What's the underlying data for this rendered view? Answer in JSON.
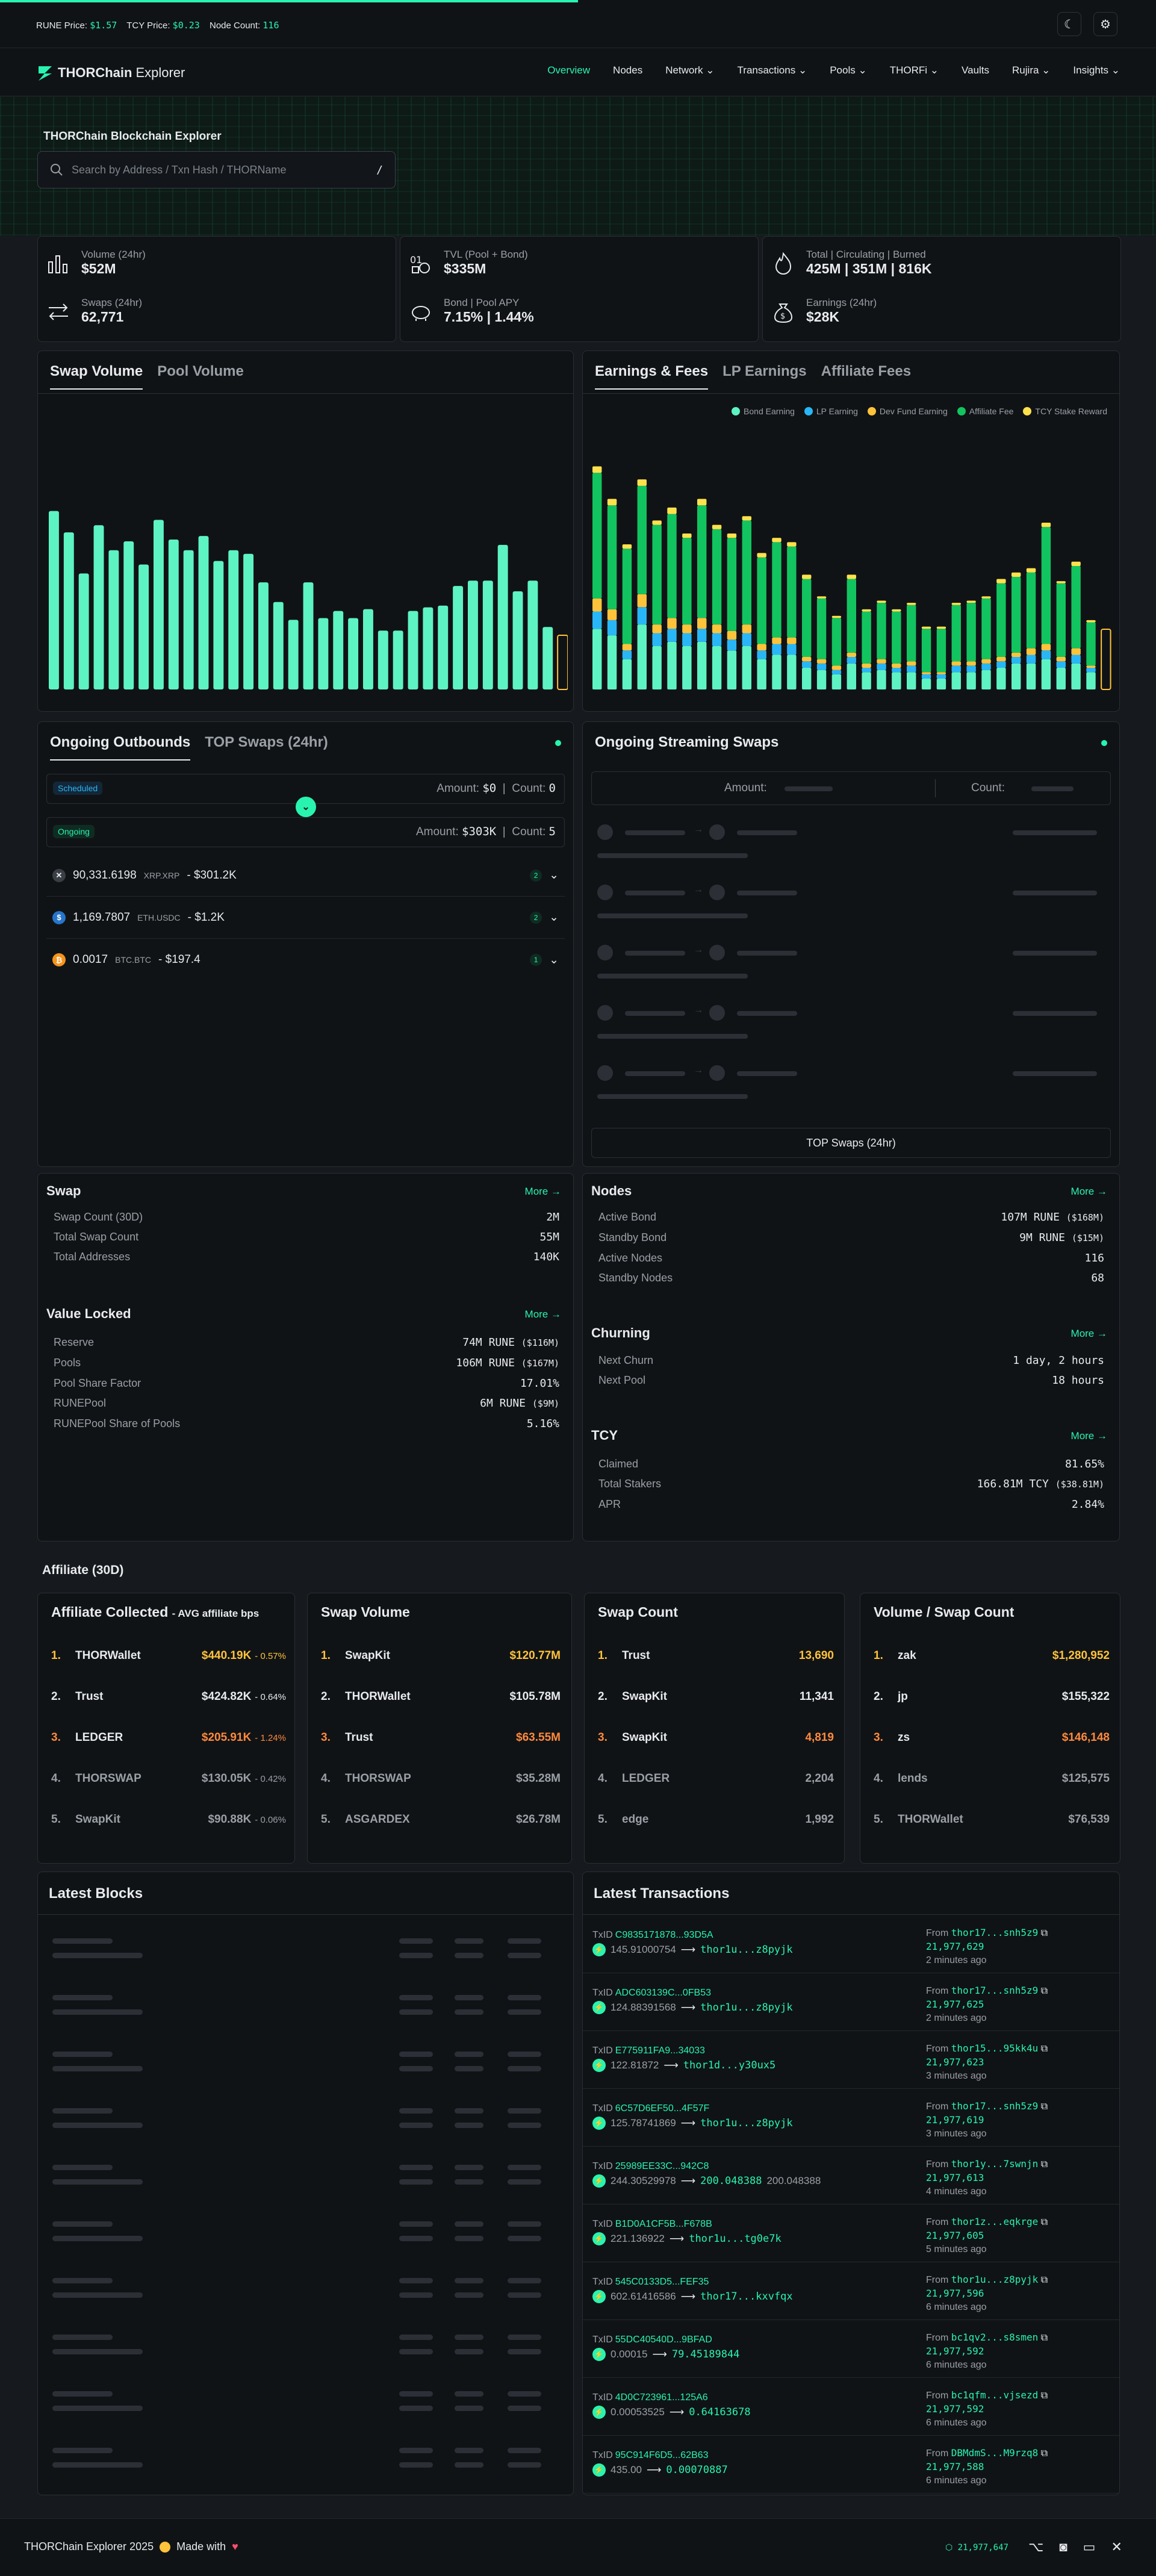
{
  "topbar": {
    "rune_label": "RUNE Price:",
    "rune_value": "$1.57",
    "tcy_label": "TCY Price:",
    "tcy_value": "$0.23",
    "node_label": "Node Count:",
    "node_value": "116"
  },
  "nav": {
    "logo_bold": "THORChain",
    "logo_rest": "Explorer",
    "items": [
      "Overview",
      "Nodes",
      "Network",
      "Transactions",
      "Pools",
      "THORFi",
      "Vaults",
      "Rujira",
      "Insights"
    ]
  },
  "hero": {
    "title": "THORChain Blockchain Explorer",
    "search_placeholder": "Search by Address / Txn Hash / THORName",
    "shortcut": "/"
  },
  "stats": [
    {
      "label": "Volume (24hr)",
      "value": "$52M",
      "icon": "bar-chart-icon"
    },
    {
      "label": "Swaps (24hr)",
      "value": "62,771",
      "icon": "swap-arrows-icon"
    },
    {
      "label": "TVL (Pool + Bond)",
      "value": "$335M",
      "icon": "lock-coins-icon"
    },
    {
      "label": "Bond | Pool APY",
      "value": "7.15% | 1.44%",
      "icon": "piggy-bank-icon"
    },
    {
      "label": "Total | Circulating | Burned",
      "value": "425M | 351M | 816K",
      "icon": "flame-icon"
    },
    {
      "label": "Earnings (24hr)",
      "value": "$28K",
      "icon": "money-bag-icon"
    }
  ],
  "volume_tabs": [
    "Swap Volume",
    "Pool Volume"
  ],
  "earning_tabs": [
    "Earnings & Fees",
    "LP Earnings",
    "Affiliate Fees"
  ],
  "colors": {
    "accent": "#28f4af",
    "bond": "#5ef3c2",
    "lp": "#29b6f6",
    "dev": "#ffc33b",
    "affiliate": "#12c45f",
    "tcy": "#ffe14d"
  },
  "chart_data": [
    {
      "type": "bar",
      "title": "",
      "ylabel": "",
      "xlabel": "",
      "series": [
        {
          "values": [
            100,
            88,
            65,
            92,
            78,
            83,
            70,
            95,
            84,
            78,
            86,
            72,
            78,
            76,
            60,
            49,
            39,
            60,
            40,
            44,
            40,
            45,
            33,
            33,
            44,
            46,
            47,
            58,
            61,
            61,
            81,
            55,
            61,
            35
          ]
        }
      ],
      "ylim": [
        0,
        100
      ]
    },
    {
      "type": "bar",
      "stacked": true,
      "legend": [
        "Bond Earning",
        "LP Earning",
        "Dev Fund Earning",
        "Affiliate Fee",
        "TCY Stake Reward"
      ],
      "legend_position": "top-right",
      "series": [
        {
          "name": "Bond Earning",
          "values": [
            28,
            25,
            14,
            30,
            20,
            22,
            20,
            22,
            20,
            18,
            20,
            14,
            16,
            16,
            10,
            9,
            7,
            12,
            8,
            9,
            8,
            8,
            5,
            5,
            8,
            8,
            9,
            10,
            12,
            12,
            14,
            10,
            12,
            8
          ]
        },
        {
          "name": "LP Earning",
          "values": [
            8,
            7,
            4,
            8,
            6,
            6,
            6,
            6,
            6,
            5,
            6,
            4,
            5,
            5,
            3,
            3,
            2,
            3,
            2,
            3,
            2,
            3,
            2,
            2,
            3,
            3,
            3,
            3,
            3,
            4,
            4,
            3,
            4,
            2
          ]
        },
        {
          "name": "Dev Fund Earning",
          "values": [
            6,
            5,
            3,
            6,
            4,
            5,
            4,
            5,
            4,
            4,
            4,
            3,
            3,
            3,
            2,
            2,
            2,
            2,
            2,
            2,
            2,
            2,
            1,
            1,
            2,
            2,
            2,
            2,
            2,
            3,
            3,
            2,
            3,
            1
          ]
        },
        {
          "name": "Affiliate Fee",
          "values": [
            58,
            48,
            44,
            50,
            46,
            48,
            40,
            52,
            44,
            43,
            48,
            40,
            44,
            42,
            36,
            28,
            22,
            34,
            24,
            26,
            24,
            26,
            20,
            20,
            26,
            27,
            28,
            34,
            35,
            35,
            54,
            34,
            38,
            20
          ]
        },
        {
          "name": "TCY Stake Reward",
          "values": [
            3,
            3,
            2,
            3,
            2,
            3,
            2,
            3,
            2,
            2,
            2,
            2,
            2,
            2,
            2,
            1,
            1,
            2,
            1,
            1,
            1,
            1,
            1,
            1,
            1,
            1,
            1,
            2,
            2,
            2,
            2,
            1,
            2,
            1
          ]
        }
      ]
    }
  ],
  "outbounds": {
    "tabs": [
      "Ongoing Outbounds",
      "TOP Swaps (24hr)"
    ],
    "scheduled": "Scheduled",
    "ongoing": "Ongoing",
    "amount_label": "Amount:",
    "count_label": "Count:",
    "scheduled_amount": "$0",
    "scheduled_count": "0",
    "ongoing_amount": "$303K",
    "ongoing_count": "5",
    "items": [
      {
        "amount": "90,331.6198",
        "asset": "XRP.XRP",
        "usd": "- $301.2K",
        "count": "2",
        "icon": "xrp-icon"
      },
      {
        "amount": "1,169.7807",
        "asset": "ETH.USDC",
        "usd": "- $1.2K",
        "count": "2",
        "icon": "usdc-icon"
      },
      {
        "amount": "0.0017",
        "asset": "BTC.BTC",
        "usd": "- $197.4",
        "count": "1",
        "icon": "btc-icon"
      }
    ]
  },
  "streaming": {
    "title": "Ongoing Streaming Swaps",
    "amount_label": "Amount:",
    "count_label": "Count:",
    "button": "TOP Swaps (24hr)"
  },
  "swap": {
    "title": "Swap",
    "more": "More →",
    "rows": [
      [
        "Swap Count (30D)",
        "2M"
      ],
      [
        "Total Swap Count",
        "55M"
      ],
      [
        "Total Addresses",
        "140K"
      ]
    ]
  },
  "value_locked": {
    "title": "Value Locked",
    "more": "More →",
    "rows": [
      [
        "Reserve",
        "74M RUNE",
        "($116M)"
      ],
      [
        "Pools",
        "106M RUNE",
        "($167M)"
      ],
      [
        "Pool Share Factor",
        "17.01%",
        ""
      ],
      [
        "RUNEPool",
        "6M RUNE",
        "($9M)"
      ],
      [
        "RUNEPool Share of Pools",
        "5.16%",
        ""
      ]
    ]
  },
  "nodes": {
    "title": "Nodes",
    "more": "More →",
    "rows": [
      [
        "Active Bond",
        "107M RUNE",
        "($168M)"
      ],
      [
        "Standby Bond",
        "9M RUNE",
        "($15M)"
      ],
      [
        "Active Nodes",
        "116",
        ""
      ],
      [
        "Standby Nodes",
        "68",
        ""
      ]
    ]
  },
  "churning": {
    "title": "Churning",
    "more": "More →",
    "rows": [
      [
        "Next Churn",
        "1 day, 2 hours"
      ],
      [
        "Next Pool",
        "18 hours"
      ]
    ]
  },
  "tcy": {
    "title": "TCY",
    "more": "More →",
    "rows": [
      [
        "Claimed",
        "81.65%",
        ""
      ],
      [
        "Total Stakers",
        "166.81M TCY",
        "($38.81M)"
      ],
      [
        "APR",
        "2.84%",
        ""
      ]
    ]
  },
  "affiliate": {
    "title": "Affiliate (30D)",
    "collected": {
      "title": "Affiliate Collected",
      "subtitle": "- AVG affiliate bps",
      "rows": [
        [
          "1.",
          "THORWallet",
          "$440.19K",
          "- 0.57%"
        ],
        [
          "2.",
          "Trust",
          "$424.82K",
          "- 0.64%"
        ],
        [
          "3.",
          "LEDGER",
          "$205.91K",
          "- 1.24%"
        ],
        [
          "4.",
          "THORSWAP",
          "$130.05K",
          "- 0.42%"
        ],
        [
          "5.",
          "SwapKit",
          "$90.88K",
          "- 0.06%"
        ]
      ]
    },
    "volume": {
      "title": "Swap Volume",
      "rows": [
        [
          "1.",
          "SwapKit",
          "$120.77M"
        ],
        [
          "2.",
          "THORWallet",
          "$105.78M"
        ],
        [
          "3.",
          "Trust",
          "$63.55M"
        ],
        [
          "4.",
          "THORSWAP",
          "$35.28M"
        ],
        [
          "5.",
          "ASGARDEX",
          "$26.78M"
        ]
      ]
    },
    "count": {
      "title": "Swap Count",
      "rows": [
        [
          "1.",
          "Trust",
          "13,690"
        ],
        [
          "2.",
          "SwapKit",
          "11,341"
        ],
        [
          "3.",
          "SwapKit",
          "4,819"
        ],
        [
          "4.",
          "LEDGER",
          "2,204"
        ],
        [
          "5.",
          "edge",
          "1,992"
        ]
      ]
    },
    "vps": {
      "title": "Volume / Swap Count",
      "rows": [
        [
          "1.",
          "zak",
          "$1,280,952"
        ],
        [
          "2.",
          "jp",
          "$155,322"
        ],
        [
          "3.",
          "zs",
          "$146,148"
        ],
        [
          "4.",
          "lends",
          "$125,575"
        ],
        [
          "5.",
          "THORWallet",
          "$76,539"
        ]
      ]
    }
  },
  "blocks": {
    "title": "Latest Blocks"
  },
  "transactions": {
    "title": "Latest Transactions",
    "txid_label": "TxID",
    "from_label": "From",
    "rows": [
      {
        "id": "C9835171878...93D5A",
        "amt": "145.91000754",
        "to": "thor1u...z8pyjk",
        "from": "thor17...snh5z9",
        "height": "21,977,629",
        "ago": "2 minutes ago"
      },
      {
        "id": "ADC603139C...0FB53",
        "amt": "124.88391568",
        "to": "thor1u...z8pyjk",
        "from": "thor17...snh5z9",
        "height": "21,977,625",
        "ago": "2 minutes ago"
      },
      {
        "id": "E775911FA9...34033",
        "amt": "122.81872",
        "to": "thor1d...y30ux5",
        "from": "thor15...95kk4u",
        "height": "21,977,623",
        "ago": "3 minutes ago"
      },
      {
        "id": "6C57D6EF50...4F57F",
        "amt": "125.78741869",
        "to": "thor1u...z8pyjk",
        "from": "thor17...snh5z9",
        "height": "21,977,619",
        "ago": "3 minutes ago"
      },
      {
        "id": "25989EE33C...942C8",
        "amt": "244.30529978",
        "to": "200.048388",
        "from": "thor1y...7swnjn",
        "height": "21,977,613",
        "ago": "4 minutes ago",
        "to2": "200.048388"
      },
      {
        "id": "B1D0A1CF5B...F678B",
        "amt": "221.136922",
        "to": "thor1u...tg0e7k",
        "from": "thor1z...eqkrge",
        "height": "21,977,605",
        "ago": "5 minutes ago"
      },
      {
        "id": "545C0133D5...FEF35",
        "amt": "602.61416586",
        "to": "thor17...kxvfqx",
        "from": "thor1u...z8pyjk",
        "height": "21,977,596",
        "ago": "6 minutes ago"
      },
      {
        "id": "55DC40540D...9BFAD",
        "amt": "0.00015",
        "to": "79.45189844",
        "from": "bc1qv2...s8smen",
        "height": "21,977,592",
        "ago": "6 minutes ago"
      },
      {
        "id": "4D0C723961...125A6",
        "amt": "0.00053525",
        "to": "0.64163678",
        "from": "bc1qfm...vjsezd",
        "height": "21,977,592",
        "ago": "6 minutes ago"
      },
      {
        "id": "95C914F6D5...62B63",
        "amt": "435.00",
        "to": "0.00070887",
        "from": "DBMdmS...M9rzq8",
        "height": "21,977,588",
        "ago": "6 minutes ago"
      }
    ]
  },
  "footer": {
    "text": "THORChain Explorer 2025",
    "made": "Made with",
    "block": "21,977,647"
  }
}
